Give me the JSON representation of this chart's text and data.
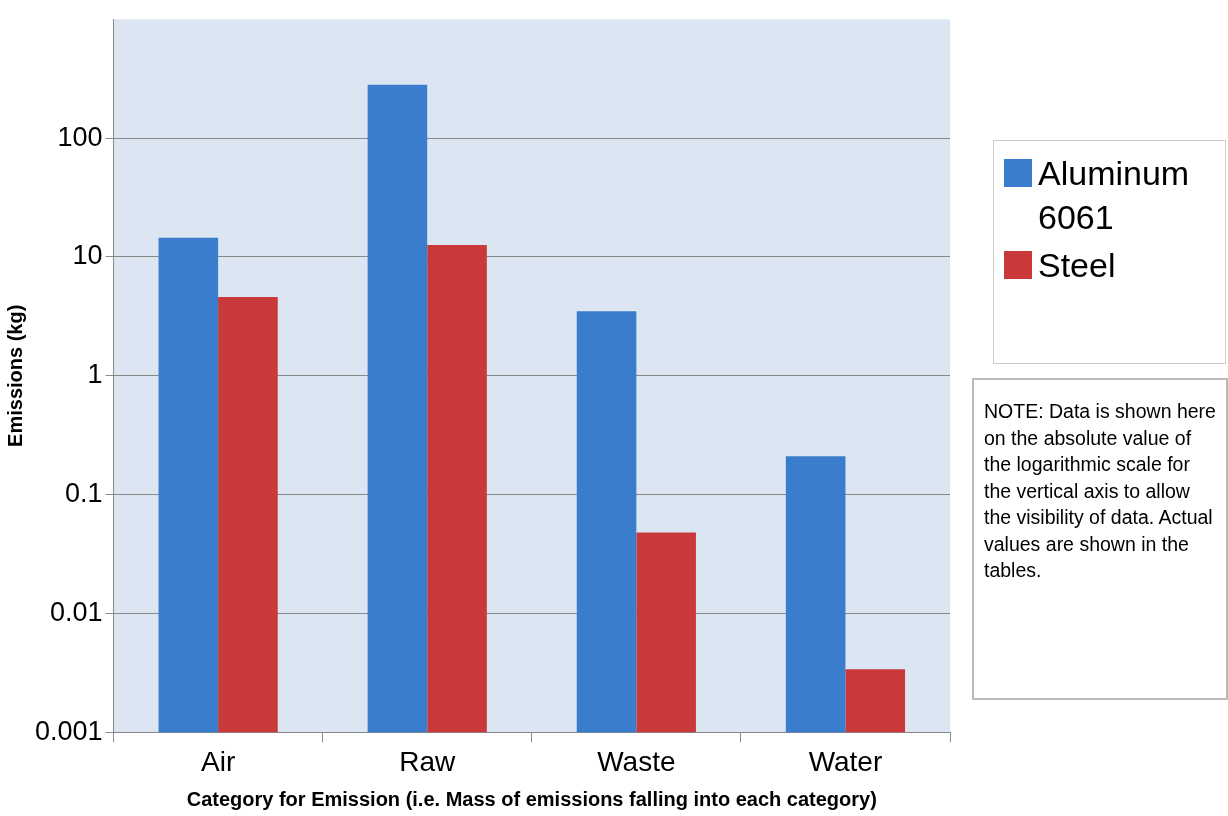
{
  "chart_data": {
    "type": "bar",
    "xlabel": "Category for Emission (i.e. Mass of emissions falling into each category)",
    "ylabel": "Emissions (kg)",
    "categories": [
      "Air",
      "Raw",
      "Waste",
      "Water"
    ],
    "series": [
      {
        "name": "Aluminum 6061",
        "color": "#3a7dcd",
        "values": [
          14.5,
          281,
          3.5,
          0.21
        ]
      },
      {
        "name": "Steel",
        "color": "#c9393a",
        "values": [
          4.6,
          12.6,
          0.048,
          0.0034
        ]
      }
    ],
    "log": "y",
    "ylim": [
      0.001,
      1000
    ],
    "yticks": [
      0.001,
      0.01,
      0.1,
      1,
      10,
      100
    ],
    "grid": "y",
    "legend": "right",
    "annotations": [
      "NOTE: Data is shown here on the absolute value of the logarithmic scale for the vertical axis to allow the visibility of data. Actual values are shown in the tables."
    ]
  }
}
